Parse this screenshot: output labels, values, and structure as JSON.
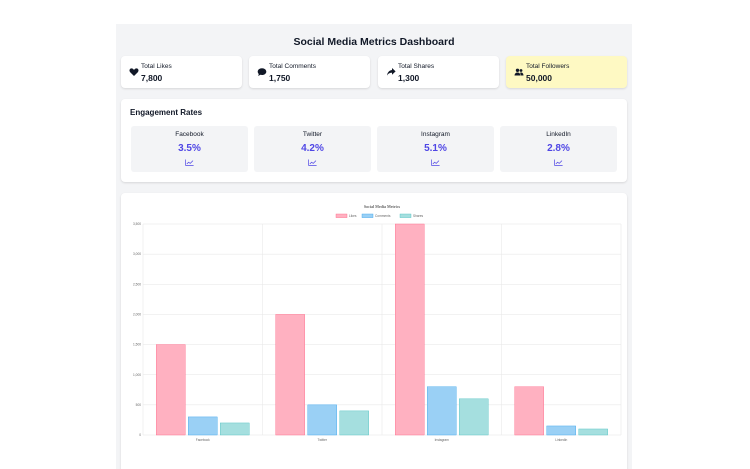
{
  "dashboard": {
    "title": "Social Media Metrics Dashboard"
  },
  "stats": [
    {
      "label": "Total Likes",
      "value": "7,800",
      "icon": "heart-icon"
    },
    {
      "label": "Total Comments",
      "value": "1,750",
      "icon": "comment-icon"
    },
    {
      "label": "Total Shares",
      "value": "1,300",
      "icon": "share-icon"
    },
    {
      "label": "Total Followers",
      "value": "50,000",
      "icon": "users-icon",
      "highlight_color": "#fef9c3"
    }
  ],
  "engagement": {
    "title": "Engagement Rates",
    "platforms": [
      {
        "name": "Facebook",
        "rate": "3.5%"
      },
      {
        "name": "Twitter",
        "rate": "4.2%"
      },
      {
        "name": "Instagram",
        "rate": "5.1%"
      },
      {
        "name": "LinkedIn",
        "rate": "2.8%"
      }
    ],
    "accent_color": "#4f46e5"
  },
  "chart_data": {
    "type": "bar",
    "title": "Social Media Metrics",
    "categories": [
      "Facebook",
      "Twitter",
      "Instagram",
      "LinkedIn"
    ],
    "series": [
      {
        "name": "Likes",
        "values": [
          1500,
          2000,
          3500,
          800
        ],
        "color": "#ffb1c1",
        "border": "#ff6384"
      },
      {
        "name": "Comments",
        "values": [
          300,
          500,
          800,
          150
        ],
        "color": "#9ad0f5",
        "border": "#36a2eb"
      },
      {
        "name": "Shares",
        "values": [
          200,
          400,
          600,
          100
        ],
        "color": "#a5dfdf",
        "border": "#4bc0c0"
      }
    ],
    "ylim": [
      0,
      3500
    ],
    "yticks": [
      "0",
      "500",
      "1,000",
      "1,500",
      "2,000",
      "2,500",
      "3,000",
      "3,500"
    ],
    "grid": true,
    "legend": "top"
  }
}
